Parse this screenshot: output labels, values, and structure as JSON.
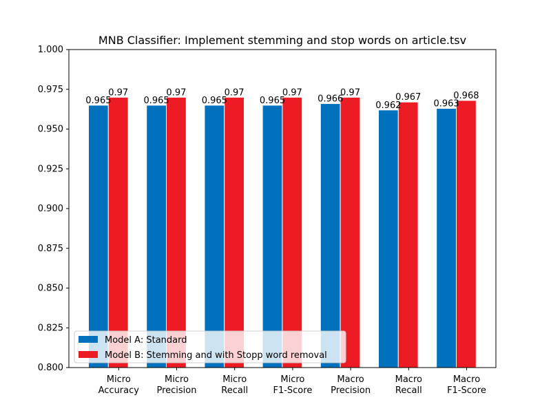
{
  "chart_data": {
    "type": "bar",
    "title": "MNB Classifier: Implement stemming and stop words on article.tsv",
    "xlabel": "",
    "ylabel": "",
    "ylim": [
      0.8,
      1.0
    ],
    "yticks": [
      "0.800",
      "0.825",
      "0.850",
      "0.875",
      "0.900",
      "0.925",
      "0.950",
      "0.975",
      "1.000"
    ],
    "categories": [
      [
        "Micro",
        "Accuracy"
      ],
      [
        "Micro",
        "Precision"
      ],
      [
        "Micro",
        "Recall"
      ],
      [
        "Micro",
        "F1-Score"
      ],
      [
        "Macro",
        "Precision"
      ],
      [
        "Macro",
        "Recall"
      ],
      [
        "Macro",
        "F1-Score"
      ]
    ],
    "series": [
      {
        "name": "Model A: Standard",
        "color": "#0072bd",
        "values": [
          0.965,
          0.965,
          0.965,
          0.965,
          0.966,
          0.962,
          0.963
        ],
        "labels": [
          "0.965",
          "0.965",
          "0.965",
          "0.965",
          "0.966",
          "0.962",
          "0.963"
        ]
      },
      {
        "name": "Model B: Stemming and with Stopp word removal",
        "color": "#ed1c24",
        "values": [
          0.97,
          0.97,
          0.97,
          0.97,
          0.97,
          0.967,
          0.968
        ],
        "labels": [
          "0.97",
          "0.97",
          "0.97",
          "0.97",
          "0.97",
          "0.967",
          "0.968"
        ]
      }
    ],
    "grid": false,
    "legend": "lower-left"
  }
}
